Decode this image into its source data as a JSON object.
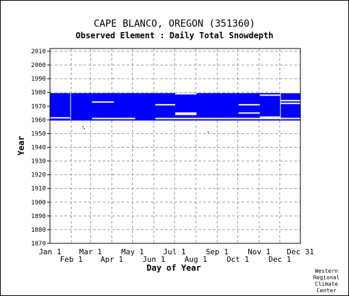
{
  "chart_data": {
    "type": "heatmap",
    "title": "CAPE BLANCO, OREGON   (351360)",
    "subtitle": "Observed Element : Daily Total Snowdepth",
    "xlabel": "Day of Year",
    "ylabel": "Year",
    "xlim": [
      1,
      365
    ],
    "ylim": [
      1870,
      2012
    ],
    "x_ticks_top_row": [
      "Jan 1",
      "Mar 1",
      "May 1",
      "Jul 1",
      "Sep 1",
      "Nov 1",
      "Dec 31"
    ],
    "x_ticks_bottom_row": [
      "Feb 1",
      "Apr 1",
      "Jun 1",
      "Aug 1",
      "Oct 1",
      "Dec 1"
    ],
    "x_tick_days": [
      1,
      32,
      60,
      91,
      121,
      152,
      182,
      213,
      244,
      274,
      305,
      335,
      365
    ],
    "y_ticks": [
      2010,
      2000,
      1990,
      1980,
      1970,
      1960,
      1950,
      1940,
      1930,
      1920,
      1910,
      1900,
      1890,
      1880,
      1870
    ],
    "grid": true,
    "series_color": "#0000ff",
    "observed_block": {
      "year_start": 1959.5,
      "year_end": 1979.5,
      "day_start": 1,
      "day_end": 365
    },
    "missing_segments": [
      {
        "year": 1961.5,
        "day_start": 1,
        "day_end": 30
      },
      {
        "year": 1973,
        "day_start": 62,
        "day_end": 94
      },
      {
        "year": 1961,
        "day_start": 62,
        "day_end": 125
      },
      {
        "year": 1971,
        "day_start": 154,
        "day_end": 183
      },
      {
        "year": 1961,
        "day_start": 154,
        "day_end": 365
      },
      {
        "year": 1958,
        "day_start": 154,
        "day_end": 216
      },
      {
        "year": 1965,
        "day_start": 183,
        "day_end": 214
      },
      {
        "year": 1964,
        "day_start": 183,
        "day_end": 214
      },
      {
        "year": 1979,
        "day_start": 183,
        "day_end": 214
      },
      {
        "year": 1971,
        "day_start": 275,
        "day_end": 306
      },
      {
        "year": 1965,
        "day_start": 275,
        "day_end": 306
      },
      {
        "year": 1962,
        "day_start": 306,
        "day_end": 336
      },
      {
        "year": 1978,
        "day_start": 306,
        "day_end": 336
      },
      {
        "year": 1972,
        "day_start": 336,
        "day_end": 365
      },
      {
        "year": 1974,
        "day_start": 336,
        "day_end": 365
      },
      {
        "year": 1980,
        "day_start": 336,
        "day_end": 365
      }
    ],
    "gap_lines": [
      {
        "day": 31,
        "year_start": 1960,
        "year_end": 1980
      },
      {
        "day": 336,
        "year_start": 1960,
        "year_end": 1980
      }
    ],
    "stray_points": [
      {
        "year": 1955,
        "day": 49
      },
      {
        "year": 1953.5,
        "day": 51
      },
      {
        "year": 1951,
        "day": 231
      }
    ]
  },
  "credit": [
    "Western",
    "Regional",
    "Climate",
    "Center"
  ]
}
